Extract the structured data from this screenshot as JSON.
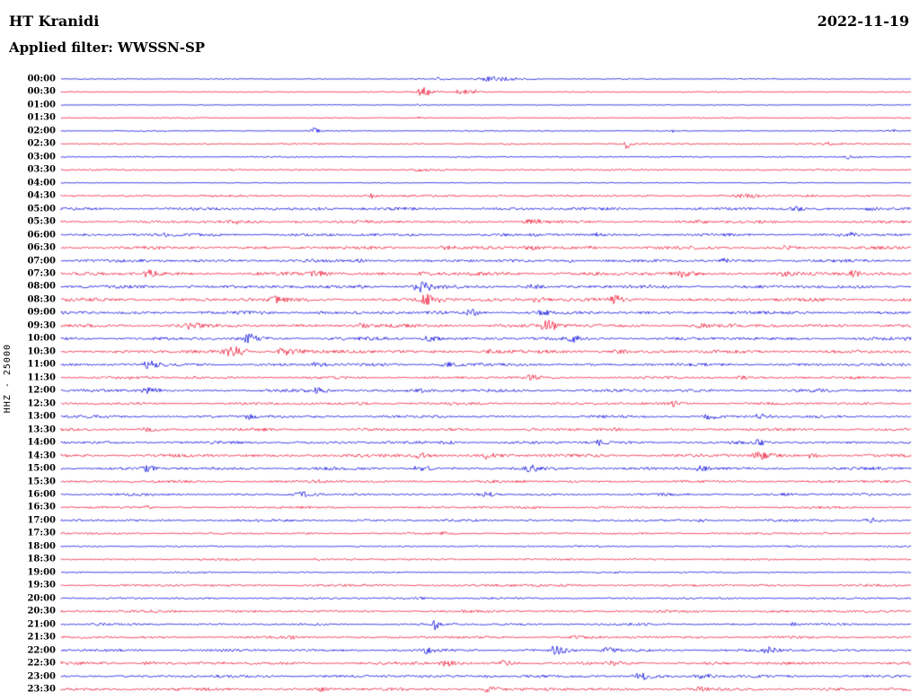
{
  "header": {
    "station": "HT Kranidi",
    "date": "2022-11-19",
    "filter_label": "Applied filter: WWSSN-SP"
  },
  "y_axis_label": "HHZ - 25000",
  "colors": {
    "blue": "#0000dd",
    "red": "#ed1130",
    "background": "#ffffff",
    "text": "#000000"
  },
  "chart_data": {
    "type": "line",
    "subtype": "helicorder-seismogram",
    "title": "HT Kranidi",
    "date": "2022-11-19",
    "filter": "WWSSN-SP",
    "channel": "HHZ",
    "gain_scale": 25000,
    "row_interval_minutes": 30,
    "x_range_fraction": [
      0,
      1
    ],
    "legend": "alternating blue/red half-hour traces, 00:00 to 23:30",
    "rows": [
      {
        "label": "00:00",
        "color": "blue",
        "noise": 0.6,
        "events": [
          {
            "x": 0.125,
            "a": 2,
            "w": 0.004
          },
          {
            "x": 0.5,
            "a": 6,
            "w": 0.03
          },
          {
            "x": 0.44,
            "a": 1.5,
            "w": 0.01
          }
        ]
      },
      {
        "label": "00:30",
        "color": "red",
        "noise": 0.7,
        "events": [
          {
            "x": 0.425,
            "a": 7,
            "w": 0.015
          },
          {
            "x": 0.47,
            "a": 4,
            "w": 0.02
          },
          {
            "x": 0.41,
            "a": 2,
            "w": 0.004
          }
        ]
      },
      {
        "label": "01:00",
        "color": "blue",
        "noise": 0.5,
        "events": [
          {
            "x": 0.42,
            "a": 1.2,
            "w": 0.005
          }
        ]
      },
      {
        "label": "01:30",
        "color": "red",
        "noise": 0.7,
        "events": [
          {
            "x": 0.42,
            "a": 1.5,
            "w": 0.004
          }
        ]
      },
      {
        "label": "02:00",
        "color": "blue",
        "noise": 0.6,
        "events": [
          {
            "x": 0.295,
            "a": 4.5,
            "w": 0.008
          },
          {
            "x": 0.975,
            "a": 2.5,
            "w": 0.008
          },
          {
            "x": 0.72,
            "a": 1,
            "w": 0.004
          }
        ]
      },
      {
        "label": "02:30",
        "color": "red",
        "noise": 0.9,
        "events": [
          {
            "x": 0.665,
            "a": 6,
            "w": 0.006
          },
          {
            "x": 0.9,
            "a": 1.2,
            "w": 0.01
          }
        ]
      },
      {
        "label": "03:00",
        "color": "blue",
        "noise": 0.7,
        "events": [
          {
            "x": 0.925,
            "a": 2.5,
            "w": 0.012
          }
        ]
      },
      {
        "label": "03:30",
        "color": "red",
        "noise": 1.0,
        "events": [
          {
            "x": 0.42,
            "a": 1,
            "w": 0.01
          },
          {
            "x": 0.6,
            "a": 1,
            "w": 0.02
          }
        ]
      },
      {
        "label": "04:00",
        "color": "blue",
        "noise": 0.5,
        "events": []
      },
      {
        "label": "04:30",
        "color": "red",
        "noise": 1.3,
        "events": [
          {
            "x": 0.365,
            "a": 3.5,
            "w": 0.006
          },
          {
            "x": 0.5,
            "a": 1.5,
            "w": 0.02
          },
          {
            "x": 0.8,
            "a": 1.5,
            "w": 0.02
          },
          {
            "x": 0.88,
            "a": 2,
            "w": 0.01
          }
        ]
      },
      {
        "label": "05:00",
        "color": "blue",
        "noise": 1.6,
        "events": [
          {
            "x": 0.86,
            "a": 3,
            "w": 0.01
          },
          {
            "x": 0.95,
            "a": 2.5,
            "w": 0.012
          },
          {
            "x": 0.3,
            "a": 1.5,
            "w": 0.02
          }
        ]
      },
      {
        "label": "05:30",
        "color": "red",
        "noise": 1.6,
        "events": [
          {
            "x": 0.2,
            "a": 2.5,
            "w": 0.012
          },
          {
            "x": 0.27,
            "a": 2,
            "w": 0.01
          },
          {
            "x": 0.55,
            "a": 2,
            "w": 0.015
          },
          {
            "x": 0.75,
            "a": 1.5,
            "w": 0.01
          }
        ]
      },
      {
        "label": "06:00",
        "color": "blue",
        "noise": 1.6,
        "events": [
          {
            "x": 0.92,
            "a": 3.5,
            "w": 0.012
          },
          {
            "x": 0.63,
            "a": 2,
            "w": 0.01
          },
          {
            "x": 0.12,
            "a": 1.5,
            "w": 0.01
          }
        ]
      },
      {
        "label": "06:30",
        "color": "red",
        "noise": 1.7,
        "events": [
          {
            "x": 0.55,
            "a": 2.5,
            "w": 0.012
          },
          {
            "x": 0.45,
            "a": 2,
            "w": 0.015
          },
          {
            "x": 0.85,
            "a": 2,
            "w": 0.012
          },
          {
            "x": 0.62,
            "a": 2.2,
            "w": 0.008
          }
        ]
      },
      {
        "label": "07:00",
        "color": "blue",
        "noise": 1.7,
        "events": [
          {
            "x": 0.6,
            "a": 2.5,
            "w": 0.01
          },
          {
            "x": 0.78,
            "a": 2,
            "w": 0.01
          },
          {
            "x": 0.35,
            "a": 1.8,
            "w": 0.012
          }
        ]
      },
      {
        "label": "07:30",
        "color": "red",
        "noise": 2.0,
        "events": [
          {
            "x": 0.1,
            "a": 3.5,
            "w": 0.012
          },
          {
            "x": 0.3,
            "a": 3,
            "w": 0.015
          },
          {
            "x": 0.42,
            "a": 3,
            "w": 0.015
          },
          {
            "x": 0.85,
            "a": 2.5,
            "w": 0.01
          },
          {
            "x": 0.93,
            "a": 4,
            "w": 0.012
          },
          {
            "x": 0.73,
            "a": 2.5,
            "w": 0.01
          }
        ]
      },
      {
        "label": "08:00",
        "color": "blue",
        "noise": 1.8,
        "events": [
          {
            "x": 0.42,
            "a": 5.5,
            "w": 0.015
          },
          {
            "x": 0.35,
            "a": 3,
            "w": 0.012
          },
          {
            "x": 0.55,
            "a": 2.5,
            "w": 0.012
          },
          {
            "x": 0.15,
            "a": 2,
            "w": 0.012
          }
        ]
      },
      {
        "label": "08:30",
        "color": "red",
        "noise": 2.0,
        "events": [
          {
            "x": 0.43,
            "a": 6.5,
            "w": 0.015
          },
          {
            "x": 0.56,
            "a": 5,
            "w": 0.015
          },
          {
            "x": 0.65,
            "a": 3,
            "w": 0.012
          },
          {
            "x": 0.25,
            "a": 2.5,
            "w": 0.012
          }
        ]
      },
      {
        "label": "09:00",
        "color": "blue",
        "noise": 1.8,
        "events": [
          {
            "x": 0.48,
            "a": 4.5,
            "w": 0.015
          },
          {
            "x": 0.56,
            "a": 3.5,
            "w": 0.012
          },
          {
            "x": 0.3,
            "a": 2,
            "w": 0.012
          }
        ]
      },
      {
        "label": "09:30",
        "color": "red",
        "noise": 1.9,
        "events": [
          {
            "x": 0.57,
            "a": 6.5,
            "w": 0.015
          },
          {
            "x": 0.35,
            "a": 3,
            "w": 0.012
          },
          {
            "x": 0.75,
            "a": 2.5,
            "w": 0.01
          },
          {
            "x": 0.15,
            "a": 2.5,
            "w": 0.012
          }
        ]
      },
      {
        "label": "10:00",
        "color": "blue",
        "noise": 1.8,
        "events": [
          {
            "x": 0.22,
            "a": 5,
            "w": 0.015
          },
          {
            "x": 0.43,
            "a": 4.5,
            "w": 0.015
          },
          {
            "x": 0.6,
            "a": 2.5,
            "w": 0.012
          }
        ]
      },
      {
        "label": "10:30",
        "color": "red",
        "noise": 1.9,
        "events": [
          {
            "x": 0.2,
            "a": 6.5,
            "w": 0.02
          },
          {
            "x": 0.26,
            "a": 7,
            "w": 0.018
          },
          {
            "x": 0.5,
            "a": 2.5,
            "w": 0.012
          },
          {
            "x": 0.65,
            "a": 2,
            "w": 0.012
          }
        ]
      },
      {
        "label": "11:00",
        "color": "blue",
        "noise": 1.7,
        "events": [
          {
            "x": 0.1,
            "a": 3.5,
            "w": 0.012
          },
          {
            "x": 0.45,
            "a": 4,
            "w": 0.015
          },
          {
            "x": 0.3,
            "a": 2.5,
            "w": 0.012
          }
        ]
      },
      {
        "label": "11:30",
        "color": "red",
        "noise": 1.5,
        "events": [
          {
            "x": 0.15,
            "a": 2.5,
            "w": 0.012
          },
          {
            "x": 0.55,
            "a": 2.5,
            "w": 0.012
          },
          {
            "x": 0.8,
            "a": 2,
            "w": 0.01
          }
        ]
      },
      {
        "label": "12:00",
        "color": "blue",
        "noise": 1.7,
        "events": [
          {
            "x": 0.1,
            "a": 3.5,
            "w": 0.015
          },
          {
            "x": 0.3,
            "a": 3,
            "w": 0.012
          },
          {
            "x": 0.42,
            "a": 2.5,
            "w": 0.012
          }
        ]
      },
      {
        "label": "12:30",
        "color": "red",
        "noise": 1.5,
        "events": [
          {
            "x": 0.72,
            "a": 3,
            "w": 0.01
          },
          {
            "x": 0.35,
            "a": 1.8,
            "w": 0.012
          }
        ]
      },
      {
        "label": "13:00",
        "color": "blue",
        "noise": 1.5,
        "events": [
          {
            "x": 0.22,
            "a": 3.5,
            "w": 0.01
          },
          {
            "x": 0.76,
            "a": 4,
            "w": 0.012
          },
          {
            "x": 0.82,
            "a": 3.5,
            "w": 0.012
          }
        ]
      },
      {
        "label": "13:30",
        "color": "red",
        "noise": 1.6,
        "events": [
          {
            "x": 0.1,
            "a": 2.5,
            "w": 0.012
          },
          {
            "x": 0.55,
            "a": 2,
            "w": 0.012
          },
          {
            "x": 0.65,
            "a": 2,
            "w": 0.01
          }
        ]
      },
      {
        "label": "14:00",
        "color": "blue",
        "noise": 1.6,
        "events": [
          {
            "x": 0.63,
            "a": 3.5,
            "w": 0.012
          },
          {
            "x": 0.82,
            "a": 3,
            "w": 0.012
          },
          {
            "x": 0.45,
            "a": 2,
            "w": 0.012
          }
        ]
      },
      {
        "label": "14:30",
        "color": "red",
        "noise": 1.8,
        "events": [
          {
            "x": 0.42,
            "a": 4.5,
            "w": 0.015
          },
          {
            "x": 0.5,
            "a": 3.5,
            "w": 0.012
          },
          {
            "x": 0.82,
            "a": 5.5,
            "w": 0.015
          },
          {
            "x": 0.88,
            "a": 3,
            "w": 0.012
          }
        ]
      },
      {
        "label": "15:00",
        "color": "blue",
        "noise": 1.7,
        "events": [
          {
            "x": 0.1,
            "a": 3,
            "w": 0.012
          },
          {
            "x": 0.42,
            "a": 4.5,
            "w": 0.012
          },
          {
            "x": 0.75,
            "a": 3,
            "w": 0.012
          },
          {
            "x": 0.55,
            "a": 2.5,
            "w": 0.012
          }
        ]
      },
      {
        "label": "15:30",
        "color": "red",
        "noise": 1.4,
        "events": [
          {
            "x": 0.3,
            "a": 1.8,
            "w": 0.012
          },
          {
            "x": 0.6,
            "a": 1.5,
            "w": 0.012
          }
        ]
      },
      {
        "label": "16:00",
        "color": "blue",
        "noise": 1.4,
        "events": [
          {
            "x": 0.28,
            "a": 3.5,
            "w": 0.015
          },
          {
            "x": 0.5,
            "a": 2,
            "w": 0.012
          },
          {
            "x": 0.85,
            "a": 1.8,
            "w": 0.01
          }
        ]
      },
      {
        "label": "16:30",
        "color": "red",
        "noise": 1.2,
        "events": [
          {
            "x": 0.1,
            "a": 2.5,
            "w": 0.008
          },
          {
            "x": 0.55,
            "a": 1.5,
            "w": 0.012
          }
        ]
      },
      {
        "label": "17:00",
        "color": "blue",
        "noise": 1.4,
        "events": [
          {
            "x": 0.95,
            "a": 3,
            "w": 0.012
          },
          {
            "x": 0.55,
            "a": 1.8,
            "w": 0.012
          },
          {
            "x": 0.75,
            "a": 1.8,
            "w": 0.01
          }
        ]
      },
      {
        "label": "17:30",
        "color": "red",
        "noise": 1.1,
        "events": [
          {
            "x": 0.45,
            "a": 1.2,
            "w": 0.012
          }
        ]
      },
      {
        "label": "18:00",
        "color": "blue",
        "noise": 0.9,
        "events": [
          {
            "x": 0.55,
            "a": 1,
            "w": 0.01
          }
        ]
      },
      {
        "label": "18:30",
        "color": "red",
        "noise": 1.1,
        "events": [
          {
            "x": 0.3,
            "a": 1,
            "w": 0.01
          }
        ]
      },
      {
        "label": "19:00",
        "color": "blue",
        "noise": 0.9,
        "events": [
          {
            "x": 0.65,
            "a": 1,
            "w": 0.01
          }
        ]
      },
      {
        "label": "19:30",
        "color": "red",
        "noise": 1.3,
        "events": [
          {
            "x": 0.5,
            "a": 0.8,
            "w": 0.05
          }
        ]
      },
      {
        "label": "20:00",
        "color": "blue",
        "noise": 1.1,
        "events": [
          {
            "x": 0.42,
            "a": 1.5,
            "w": 0.01
          }
        ]
      },
      {
        "label": "20:30",
        "color": "red",
        "noise": 1.4,
        "events": [
          {
            "x": 0.2,
            "a": 1.5,
            "w": 0.012
          }
        ]
      },
      {
        "label": "21:00",
        "color": "blue",
        "noise": 1.3,
        "events": [
          {
            "x": 0.44,
            "a": 6,
            "w": 0.006
          },
          {
            "x": 0.86,
            "a": 2,
            "w": 0.01
          }
        ]
      },
      {
        "label": "21:30",
        "color": "red",
        "noise": 1.4,
        "events": [
          {
            "x": 0.27,
            "a": 2.5,
            "w": 0.005
          },
          {
            "x": 0.6,
            "a": 1.5,
            "w": 0.012
          }
        ]
      },
      {
        "label": "22:00",
        "color": "blue",
        "noise": 1.5,
        "events": [
          {
            "x": 0.43,
            "a": 2.5,
            "w": 0.012
          },
          {
            "x": 0.58,
            "a": 4.5,
            "w": 0.018
          },
          {
            "x": 0.64,
            "a": 3,
            "w": 0.012
          },
          {
            "x": 0.83,
            "a": 3,
            "w": 0.012
          }
        ]
      },
      {
        "label": "22:30",
        "color": "red",
        "noise": 1.7,
        "events": [
          {
            "x": 0.1,
            "a": 3,
            "w": 0.012
          },
          {
            "x": 0.45,
            "a": 5,
            "w": 0.015
          },
          {
            "x": 0.52,
            "a": 3,
            "w": 0.012
          },
          {
            "x": 0.65,
            "a": 2.5,
            "w": 0.012
          }
        ]
      },
      {
        "label": "23:00",
        "color": "blue",
        "noise": 1.6,
        "events": [
          {
            "x": 0.68,
            "a": 5.5,
            "w": 0.02
          },
          {
            "x": 0.75,
            "a": 4,
            "w": 0.015
          },
          {
            "x": 0.5,
            "a": 2.5,
            "w": 0.012
          }
        ]
      },
      {
        "label": "23:30",
        "color": "red",
        "noise": 1.7,
        "events": [
          {
            "x": 0.5,
            "a": 3.5,
            "w": 0.012
          },
          {
            "x": 0.3,
            "a": 2,
            "w": 0.012
          },
          {
            "x": 0.75,
            "a": 2,
            "w": 0.012
          }
        ]
      }
    ]
  }
}
